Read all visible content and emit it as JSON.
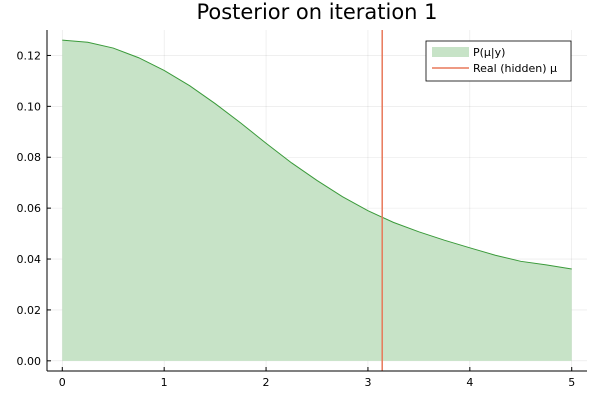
{
  "chart_data": {
    "type": "area",
    "title": "Posterior on iteration 1",
    "xlabel": "",
    "ylabel": "",
    "xlim": [
      -0.15,
      5.15
    ],
    "ylim": [
      -0.004,
      0.13
    ],
    "xticks": [
      0,
      1,
      2,
      3,
      4,
      5
    ],
    "xtick_labels": [
      "0",
      "1",
      "2",
      "3",
      "4",
      "5"
    ],
    "yticks": [
      0.0,
      0.02,
      0.04,
      0.06,
      0.08,
      0.1,
      0.12
    ],
    "ytick_labels": [
      "0.00",
      "0.02",
      "0.04",
      "0.06",
      "0.08",
      "0.10",
      "0.12"
    ],
    "grid": true,
    "legend_position": "top-right",
    "series": [
      {
        "name": "P(μ|y)",
        "kind": "area",
        "color": "#3a9a3a",
        "fill": "#c7e3c7",
        "x": [
          0,
          0.25,
          0.5,
          0.75,
          1.0,
          1.25,
          1.5,
          1.75,
          2.0,
          2.25,
          2.5,
          2.75,
          3.0,
          3.25,
          3.5,
          3.75,
          4.0,
          4.25,
          4.5,
          4.75,
          5.0
        ],
        "y": [
          0.126,
          0.1252,
          0.1229,
          0.1191,
          0.1141,
          0.1081,
          0.1011,
          0.0935,
          0.0855,
          0.0778,
          0.0709,
          0.0645,
          0.059,
          0.0544,
          0.0507,
          0.0474,
          0.0444,
          0.0415,
          0.0391,
          0.0377,
          0.0361
        ]
      },
      {
        "name": "Real (hidden) μ",
        "kind": "vline",
        "color": "#e8795a",
        "x": 3.14
      }
    ]
  }
}
